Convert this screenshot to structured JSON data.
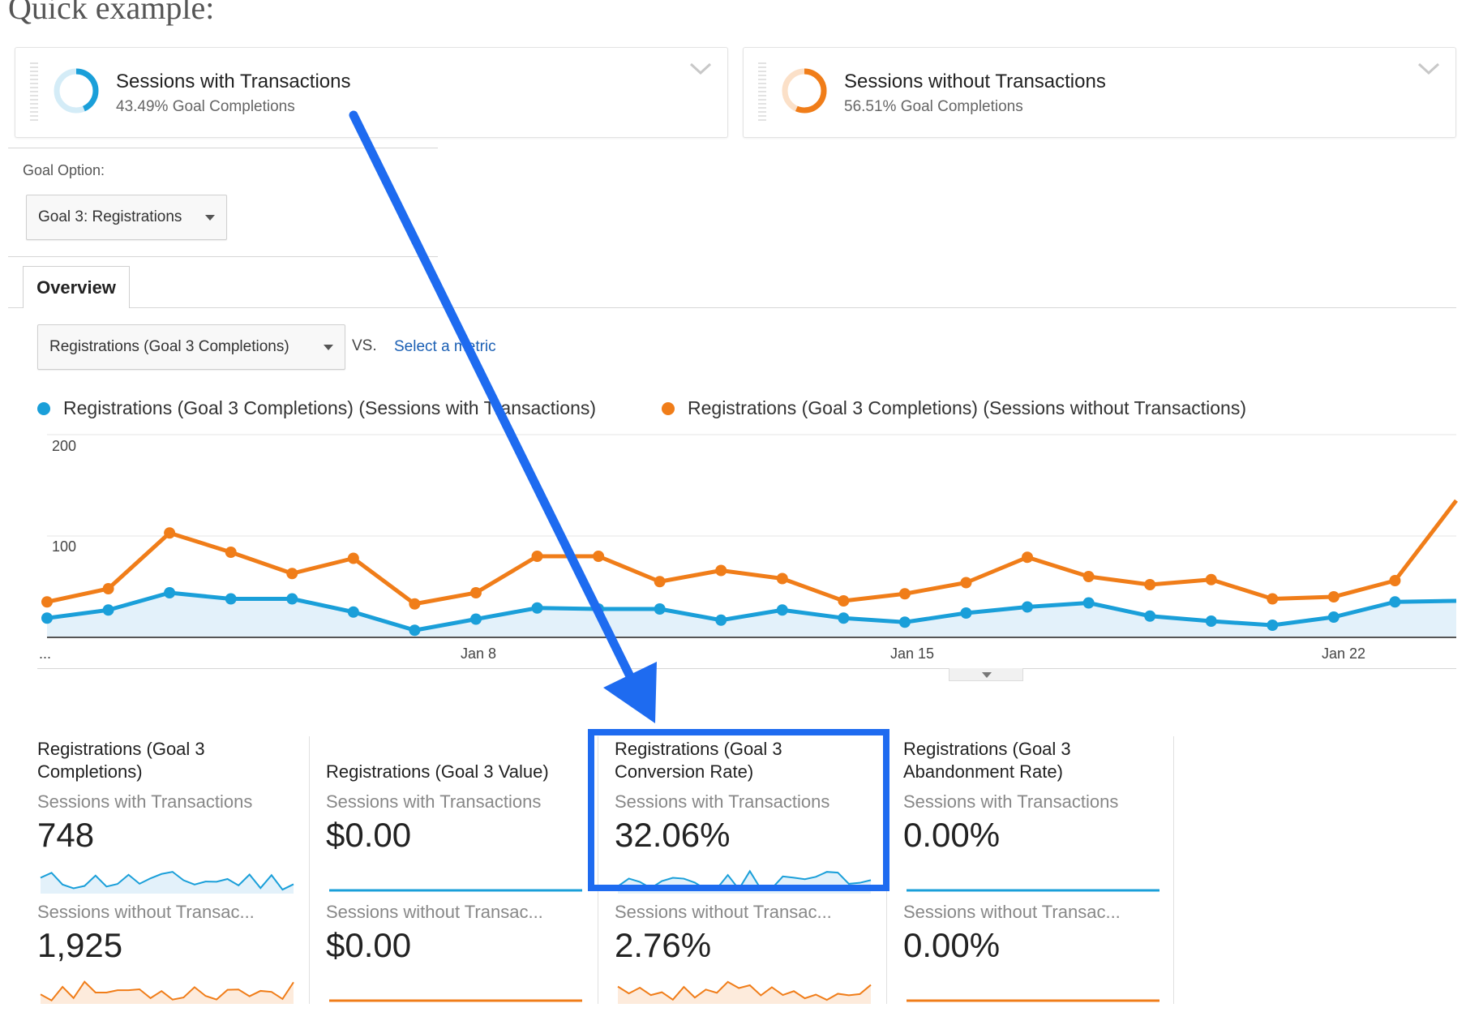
{
  "heading": "Quick example:",
  "segments": [
    {
      "title": "Sessions with Transactions",
      "subtitle": "43.49% Goal Completions",
      "color": "#1a9fd9",
      "fraction": 0.4349
    },
    {
      "title": "Sessions without Transactions",
      "subtitle": "56.51% Goal Completions",
      "color": "#f07d19",
      "fraction": 0.5651
    }
  ],
  "goal_option": {
    "label": "Goal Option:",
    "selected": "Goal 3: Registrations"
  },
  "tabs": [
    {
      "label": "Overview"
    }
  ],
  "metric_selector": {
    "selected": "Registrations (Goal 3 Completions)",
    "vs": "VS.",
    "link": "Select a metric"
  },
  "chart_data": {
    "type": "line",
    "ylim": [
      0,
      200
    ],
    "y_ticks": [
      "200",
      "100"
    ],
    "x_tick_labels": [
      "...",
      "Jan 8",
      "Jan 15",
      "Jan 22"
    ],
    "series": [
      {
        "name": "Registrations (Goal 3 Completions) (Sessions with Transactions)",
        "color": "#1a9fd9",
        "values": [
          19,
          27,
          44,
          38,
          38,
          25,
          7,
          18,
          29,
          28,
          28,
          17,
          27,
          19,
          15,
          24,
          30,
          34,
          21,
          16,
          12,
          20,
          35,
          36
        ]
      },
      {
        "name": "Registrations (Goal 3 Completions) (Sessions without Transactions)",
        "color": "#f07d19",
        "values": [
          35,
          48,
          103,
          84,
          63,
          78,
          33,
          44,
          80,
          80,
          55,
          66,
          58,
          36,
          43,
          54,
          79,
          60,
          52,
          57,
          38,
          40,
          56,
          135
        ]
      }
    ]
  },
  "tiles": [
    {
      "title": "Registrations (Goal 3 Completions)",
      "seg1": "Sessions with Transactions",
      "val1": "748",
      "seg2": "Sessions without Transac...",
      "val2": "1,925",
      "flat": false
    },
    {
      "title": "Registrations (Goal 3 Value)",
      "seg1": "Sessions with Transactions",
      "val1": "$0.00",
      "seg2": "Sessions without Transac...",
      "val2": "$0.00",
      "flat": true
    },
    {
      "title": "Registrations (Goal 3 Conversion Rate)",
      "seg1": "Sessions with Transactions",
      "val1": "32.06%",
      "seg2": "Sessions without Transac...",
      "val2": "2.76%",
      "flat": false
    },
    {
      "title": "Registrations (Goal 3 Abandonment Rate)",
      "seg1": "Sessions with Transactions",
      "val1": "0.00%",
      "seg2": "Sessions without Transac...",
      "val2": "0.00%",
      "flat": true
    }
  ],
  "highlight": {
    "color": "#1e6bf0"
  }
}
